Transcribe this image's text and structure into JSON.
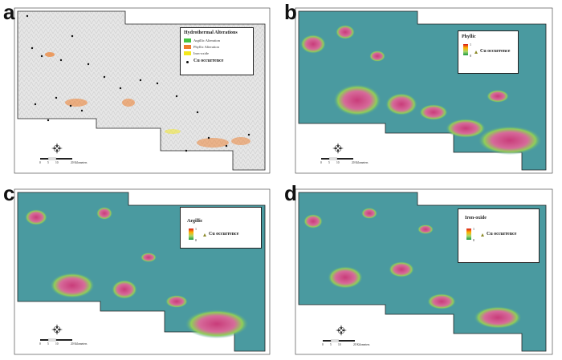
{
  "panels": [
    {
      "letter": "a",
      "legend": {
        "title": "Hydrothermal Alterations",
        "items": [
          {
            "label": "Argillic Alteration",
            "color": "#43c43f"
          },
          {
            "label": "Phyllic Alteration",
            "color": "#ee7d2b"
          },
          {
            "label": "Iron-oxide",
            "color": "#f4e81b"
          }
        ],
        "occurrence": "Cu occurrence"
      },
      "scale": {
        "ticks": [
          "0",
          "5",
          "10",
          "20 Kilometers"
        ]
      }
    },
    {
      "letter": "b",
      "legend": {
        "title": "Phyllic",
        "max": "1",
        "min": "0",
        "occurrence": "Cu occurrence"
      },
      "scale": {
        "ticks": [
          "0",
          "5",
          "10",
          "20 Kilometers"
        ]
      }
    },
    {
      "letter": "c",
      "legend": {
        "title": "Argillic",
        "max": "1",
        "min": "0",
        "occurrence": "Cu occurrence"
      },
      "scale": {
        "ticks": [
          "0",
          "5",
          "10",
          "20 Kilometers"
        ]
      }
    },
    {
      "letter": "d",
      "legend": {
        "title": "Iron-oxide",
        "max": "1",
        "min": "0",
        "occurrence": "Cu occurrence"
      },
      "scale": {
        "ticks": [
          "0",
          "5",
          "10",
          "20 Kilometers"
        ]
      }
    }
  ],
  "colors": {
    "hillshade": "#e2e2e2",
    "heat_base": "#4a9aa0",
    "heat_hot": "#c93c7a",
    "heat_mid": "#8fce58",
    "occurrence_dot": "#111111",
    "occurrence_triangle": "#8c8a2a"
  },
  "icons": {
    "north_arrow": "compass-rose-icon"
  }
}
